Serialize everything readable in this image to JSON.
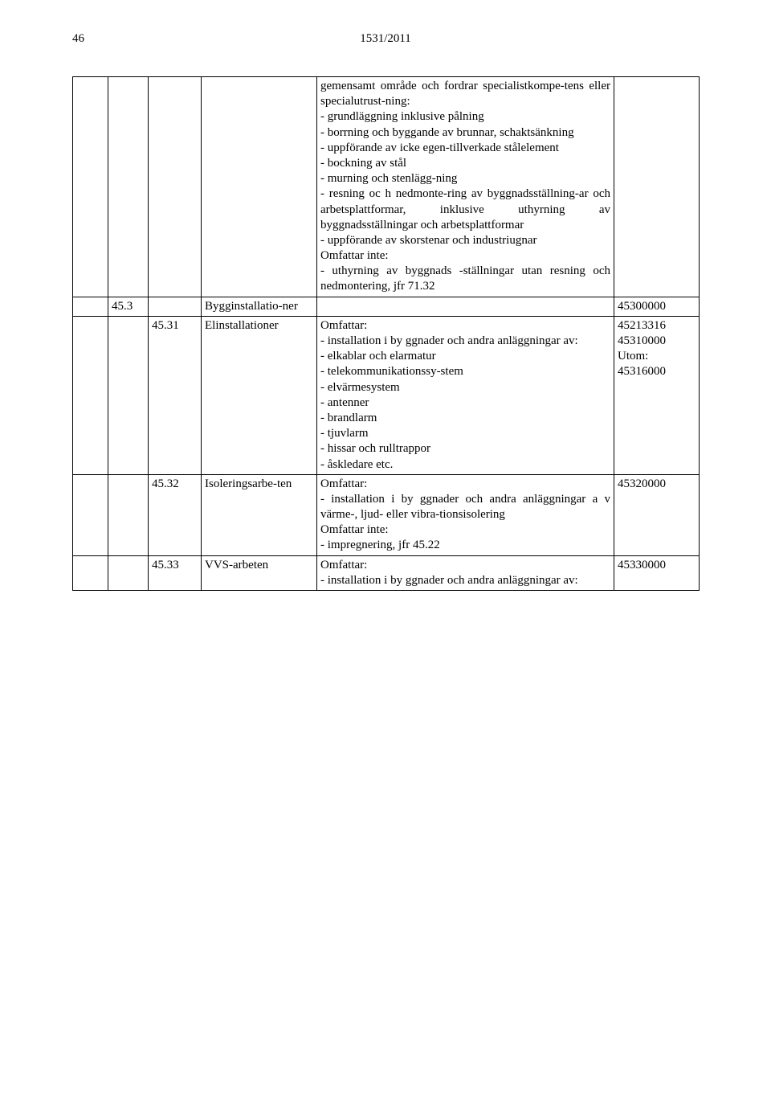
{
  "header": {
    "page_number": "46",
    "doc_ref": "1531/2011"
  },
  "rows": [
    {
      "c1": "",
      "c2": "",
      "c3": "",
      "c4": "",
      "c5": "gemensamt område och fordrar specialistkompe-tens eller specialutrust-ning:\n- grundläggning inklusive pålning\n- borrning och byggande av brunnar, schaktsänkning\n- uppförande av icke egen-tillverkade stålelement\n- bockning av stål\n- murning och stenlägg-ning\n- resning oc h nedmonte-ring av byggnadsställning-ar och arbetsplattformar, inklusive uthyrning av byggnadsställningar och arbetsplattformar\n- uppförande av skorstenar och industriugnar\nOmfattar inte:\n- uthyrning av byggnads -ställningar utan resning och nedmontering, jfr 71.32",
      "c6": ""
    },
    {
      "c1": "",
      "c2": "45.3",
      "c3": "",
      "c4": "Bygginstallatio-ner",
      "c5": "",
      "c6": "45300000"
    },
    {
      "c1": "",
      "c2": "",
      "c3": "45.31",
      "c4": "Elinstallationer",
      "c5": "Omfattar:\n- installation i by ggnader och andra anläggningar av:\n- elkablar och elarmatur\n- telekommunikationssy-stem\n- elvärmesystem\n- antenner\n- brandlarm\n- tjuvlarm\n- hissar och rulltrappor\n- åskledare etc.",
      "c6": "45213316\n45310000\nUtom:\n45316000"
    },
    {
      "c1": "",
      "c2": "",
      "c3": "45.32",
      "c4": "Isoleringsarbe-ten",
      "c5": "Omfattar:\n- installation i by ggnader och andra anläggningar a v värme-, ljud- eller vibra-tionsisolering\nOmfattar inte:\n- impregnering, jfr 45.22",
      "c6": "45320000"
    },
    {
      "c1": "",
      "c2": "",
      "c3": "45.33",
      "c4": "VVS-arbeten",
      "c5": "Omfattar:\n- installation i by ggnader och andra anläggningar av:",
      "c6": "45330000"
    }
  ]
}
